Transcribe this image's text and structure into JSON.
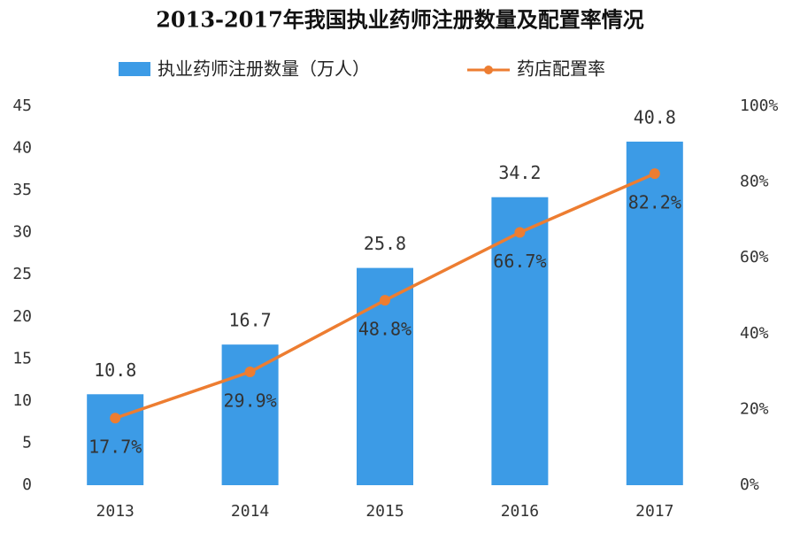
{
  "chart_data": {
    "type": "bar",
    "title": "2013-2017年我国执业药师注册数量及配置率情况",
    "categories": [
      "2013",
      "2014",
      "2015",
      "2016",
      "2017"
    ],
    "series": [
      {
        "name": "执业药师注册数量（万人）",
        "type": "bar",
        "color": "#3c9be6",
        "values": [
          10.8,
          16.7,
          25.8,
          34.2,
          40.8
        ]
      },
      {
        "name": "药店配置率",
        "type": "line",
        "axis": "y2",
        "color": "#ed7d31",
        "values": [
          17.7,
          29.9,
          48.8,
          66.7,
          82.2
        ],
        "value_labels": [
          "17.7%",
          "29.9%",
          "48.8%",
          "66.7%",
          "82.2%"
        ]
      }
    ],
    "ylim": [
      0,
      45
    ],
    "yticks": [
      0,
      5,
      10,
      15,
      20,
      25,
      30,
      35,
      40,
      45
    ],
    "y2lim": [
      0,
      100
    ],
    "y2ticks": [
      {
        "value": 0,
        "label": "0%"
      },
      {
        "value": 20,
        "label": "20%"
      },
      {
        "value": 40,
        "label": "40%"
      },
      {
        "value": 60,
        "label": "60%"
      },
      {
        "value": 80,
        "label": "80%"
      },
      {
        "value": 100,
        "label": "100%"
      }
    ],
    "grid": false
  }
}
